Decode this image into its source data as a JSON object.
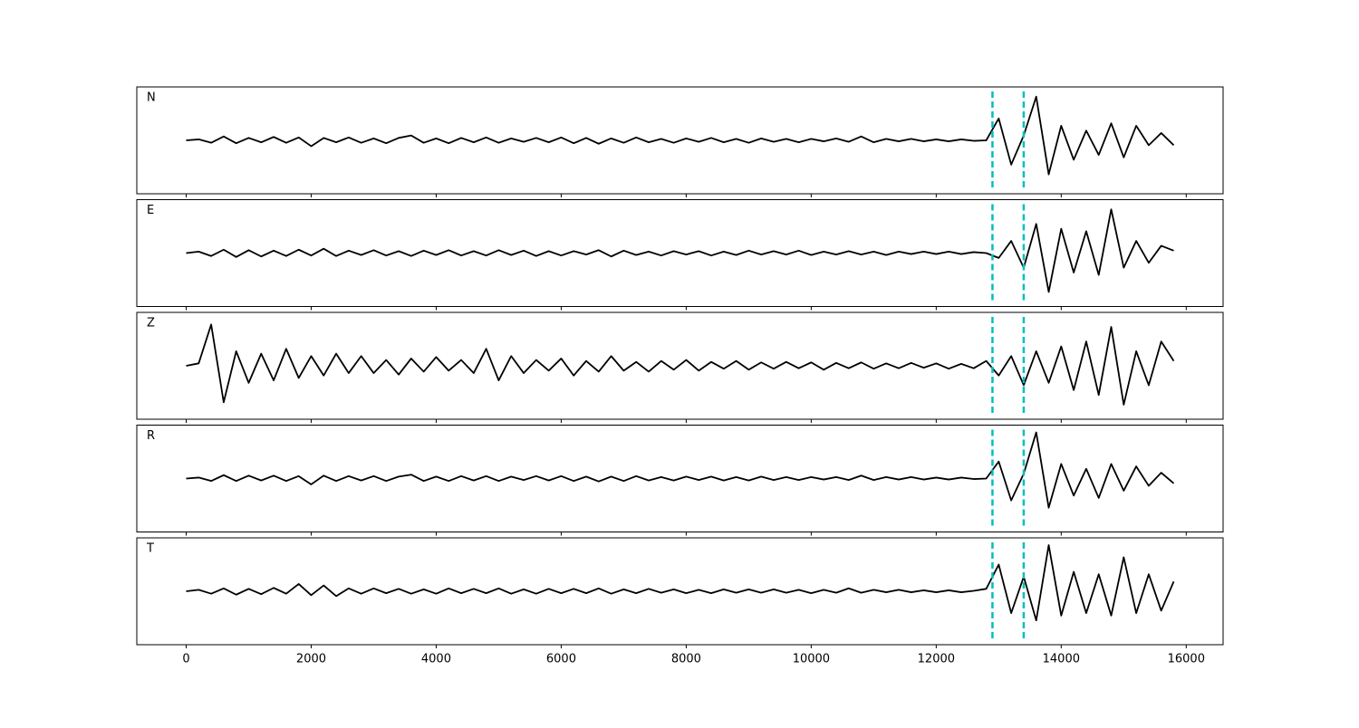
{
  "chart_data": {
    "type": "line",
    "x": [
      0,
      200,
      400,
      600,
      800,
      1000,
      1200,
      1400,
      1600,
      1800,
      2000,
      2200,
      2400,
      2600,
      2800,
      3000,
      3200,
      3400,
      3600,
      3800,
      4000,
      4200,
      4400,
      4600,
      4800,
      5000,
      5200,
      5400,
      5600,
      5800,
      6000,
      6200,
      6400,
      6600,
      6800,
      7000,
      7200,
      7400,
      7600,
      7800,
      8000,
      8200,
      8400,
      8600,
      8800,
      9000,
      9200,
      9400,
      9600,
      9800,
      10000,
      10200,
      10400,
      10600,
      10800,
      11000,
      11200,
      11400,
      11600,
      11800,
      12000,
      12200,
      12400,
      12600,
      12800,
      13000,
      13200,
      13400,
      13600,
      13800,
      14000,
      14200,
      14400,
      14600,
      14800,
      15000,
      15200,
      15400,
      15600,
      15800
    ],
    "series": [
      {
        "name": "N",
        "color": "#000000",
        "values": [
          0,
          0.02,
          -0.05,
          0.08,
          -0.06,
          0.05,
          -0.04,
          0.07,
          -0.05,
          0.06,
          -0.12,
          0.05,
          -0.04,
          0.06,
          -0.05,
          0.04,
          -0.06,
          0.05,
          0.1,
          -0.05,
          0.04,
          -0.06,
          0.05,
          -0.04,
          0.06,
          -0.05,
          0.04,
          -0.03,
          0.05,
          -0.04,
          0.06,
          -0.06,
          0.05,
          -0.07,
          0.04,
          -0.05,
          0.06,
          -0.04,
          0.03,
          -0.05,
          0.04,
          -0.03,
          0.05,
          -0.04,
          0.03,
          -0.05,
          0.04,
          -0.03,
          0.03,
          -0.04,
          0.03,
          -0.02,
          0.04,
          -0.03,
          0.08,
          -0.04,
          0.03,
          -0.02,
          0.03,
          -0.02,
          0.02,
          -0.02,
          0.02,
          -0.01,
          0.0,
          0.45,
          -0.5,
          0.1,
          0.9,
          -0.7,
          0.3,
          -0.4,
          0.2,
          -0.3,
          0.35,
          -0.35,
          0.3,
          -0.1,
          0.15,
          -0.1
        ]
      },
      {
        "name": "E",
        "color": "#000000",
        "values": [
          0,
          0.03,
          -0.06,
          0.07,
          -0.08,
          0.06,
          -0.07,
          0.05,
          -0.06,
          0.07,
          -0.05,
          0.09,
          -0.06,
          0.05,
          -0.04,
          0.06,
          -0.05,
          0.04,
          -0.06,
          0.05,
          -0.04,
          0.06,
          -0.05,
          0.04,
          -0.05,
          0.06,
          -0.04,
          0.05,
          -0.06,
          0.04,
          -0.05,
          0.04,
          -0.03,
          0.06,
          -0.07,
          0.05,
          -0.04,
          0.03,
          -0.05,
          0.04,
          -0.03,
          0.04,
          -0.05,
          0.03,
          -0.04,
          0.05,
          -0.03,
          0.04,
          -0.03,
          0.05,
          -0.04,
          0.03,
          -0.03,
          0.04,
          -0.03,
          0.03,
          -0.04,
          0.03,
          -0.02,
          0.03,
          -0.02,
          0.03,
          -0.02,
          0.02,
          0.0,
          -0.1,
          0.25,
          -0.3,
          0.6,
          -0.8,
          0.5,
          -0.4,
          0.45,
          -0.45,
          0.9,
          -0.3,
          0.25,
          -0.2,
          0.15,
          0.05
        ]
      },
      {
        "name": "Z",
        "color": "#000000",
        "values": [
          0,
          0.05,
          0.85,
          -0.75,
          0.3,
          -0.35,
          0.25,
          -0.3,
          0.35,
          -0.25,
          0.2,
          -0.2,
          0.25,
          -0.15,
          0.2,
          -0.15,
          0.12,
          -0.18,
          0.15,
          -0.12,
          0.18,
          -0.1,
          0.12,
          -0.15,
          0.35,
          -0.3,
          0.2,
          -0.15,
          0.12,
          -0.1,
          0.15,
          -0.2,
          0.1,
          -0.12,
          0.2,
          -0.1,
          0.08,
          -0.12,
          0.1,
          -0.08,
          0.12,
          -0.1,
          0.08,
          -0.06,
          0.1,
          -0.08,
          0.07,
          -0.06,
          0.08,
          -0.05,
          0.07,
          -0.08,
          0.06,
          -0.05,
          0.07,
          -0.06,
          0.05,
          -0.05,
          0.06,
          -0.04,
          0.05,
          -0.06,
          0.04,
          -0.05,
          0.1,
          -0.2,
          0.2,
          -0.4,
          0.3,
          -0.35,
          0.4,
          -0.5,
          0.5,
          -0.6,
          0.8,
          -0.8,
          0.3,
          -0.4,
          0.5,
          0.1
        ]
      },
      {
        "name": "R",
        "color": "#000000",
        "values": [
          0,
          0.02,
          -0.05,
          0.07,
          -0.05,
          0.06,
          -0.04,
          0.06,
          -0.05,
          0.05,
          -0.12,
          0.06,
          -0.05,
          0.05,
          -0.04,
          0.05,
          -0.05,
          0.04,
          0.08,
          -0.05,
          0.04,
          -0.05,
          0.05,
          -0.04,
          0.05,
          -0.05,
          0.04,
          -0.03,
          0.05,
          -0.04,
          0.05,
          -0.05,
          0.04,
          -0.06,
          0.04,
          -0.05,
          0.05,
          -0.04,
          0.03,
          -0.04,
          0.04,
          -0.03,
          0.04,
          -0.04,
          0.03,
          -0.04,
          0.04,
          -0.03,
          0.03,
          -0.03,
          0.03,
          -0.02,
          0.03,
          -0.03,
          0.06,
          -0.03,
          0.03,
          -0.02,
          0.03,
          -0.02,
          0.02,
          -0.02,
          0.02,
          -0.01,
          0.0,
          0.35,
          -0.45,
          0.1,
          0.95,
          -0.6,
          0.3,
          -0.35,
          0.2,
          -0.4,
          0.3,
          -0.25,
          0.25,
          -0.15,
          0.12,
          -0.1
        ]
      },
      {
        "name": "T",
        "color": "#000000",
        "values": [
          0,
          0.03,
          -0.05,
          0.06,
          -0.07,
          0.05,
          -0.06,
          0.07,
          -0.05,
          0.15,
          -0.08,
          0.12,
          -0.1,
          0.06,
          -0.05,
          0.06,
          -0.04,
          0.05,
          -0.05,
          0.04,
          -0.05,
          0.06,
          -0.04,
          0.05,
          -0.04,
          0.06,
          -0.05,
          0.04,
          -0.05,
          0.05,
          -0.04,
          0.05,
          -0.04,
          0.06,
          -0.05,
          0.04,
          -0.04,
          0.05,
          -0.03,
          0.04,
          -0.04,
          0.03,
          -0.04,
          0.04,
          -0.03,
          0.04,
          -0.03,
          0.04,
          -0.03,
          0.03,
          -0.04,
          0.03,
          -0.03,
          0.06,
          -0.03,
          0.03,
          -0.02,
          0.03,
          -0.02,
          0.02,
          -0.02,
          0.02,
          -0.02,
          0.01,
          0.05,
          0.55,
          -0.45,
          0.3,
          -0.6,
          0.95,
          -0.5,
          0.4,
          -0.45,
          0.35,
          -0.5,
          0.7,
          -0.45,
          0.35,
          -0.4,
          0.2
        ]
      }
    ],
    "ylim": [
      -1.1,
      1.1
    ],
    "xlim": [
      -790,
      16590
    ],
    "xticks": [
      0,
      2000,
      4000,
      6000,
      8000,
      10000,
      12000,
      14000,
      16000
    ],
    "vlines": [
      12900,
      13400
    ],
    "vline_color": "#00bfbf"
  }
}
